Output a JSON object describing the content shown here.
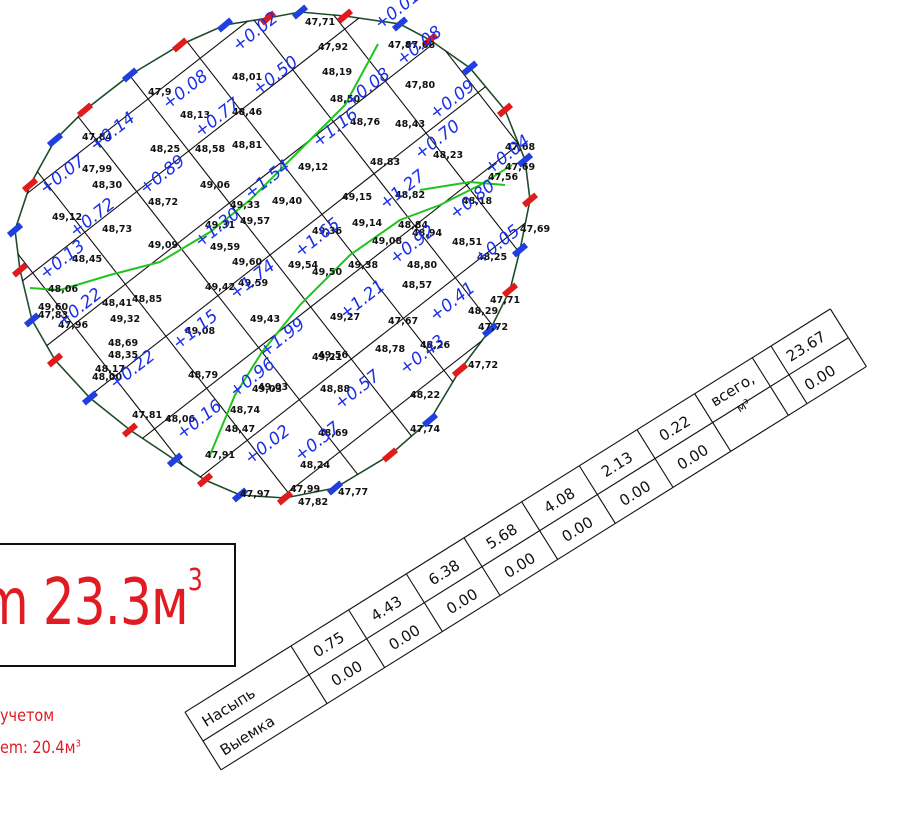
{
  "result": {
    "prefix": "m",
    "volume": "23.3",
    "unit": "м",
    "power": "3"
  },
  "note": {
    "line1": "учетом",
    "line2_prefix": "em: 20.4",
    "line2_unit": "м",
    "line2_power": "3"
  },
  "table": {
    "row_fill_label": "Насыпь",
    "row_cut_label": "Выемка",
    "fill_values": [
      "0.75",
      "4.43",
      "6.38",
      "5.68",
      "4.08",
      "2.13",
      "0.22"
    ],
    "cut_values": [
      "0.00",
      "0.00",
      "0.00",
      "0.00",
      "0.00",
      "0.00",
      "0.00"
    ],
    "total_label_1": "всего,",
    "total_label_2": "м³",
    "total_fill": "23.67",
    "total_cut": "0.00"
  },
  "grid": {
    "work_marks": [
      "+0.02",
      "+0.01",
      "+0.08",
      "+0.08",
      "+0.50",
      "+0.14",
      "+0.77",
      "+0.08",
      "+0.09",
      "+0.07",
      "+0.89",
      "+1.16",
      "+0.70",
      "+0.04",
      "+0.72",
      "+1.54",
      "+1.27",
      "+0.80",
      "+0.13",
      "+1.30",
      "+1.65",
      "+0.92",
      "+0.05",
      "+0.22",
      "+1.74",
      "+1.21",
      "+0.41",
      "+1.15",
      "+1.99",
      "+0.43",
      "+0.22",
      "+0.96",
      "+0.57",
      "+0.16",
      "+0.02",
      "+0.37"
    ],
    "elevations": [
      "47,71",
      "47,92",
      "47,68",
      "47,87",
      "48,19",
      "48,01",
      "47,80",
      "47,9",
      "48,13",
      "48,46",
      "48,50",
      "48,76",
      "48,43",
      "47,84",
      "48,25",
      "48,58",
      "48,81",
      "49,12",
      "48,83",
      "48,23",
      "47,68",
      "47,69",
      "47,99",
      "48,30",
      "49,06",
      "48,72",
      "49,33",
      "49,40",
      "49,15",
      "48,82",
      "48,18",
      "47,56",
      "47,69",
      "49,12",
      "48,73",
      "49,31",
      "49,57",
      "49,36",
      "49,14",
      "48,94",
      "48,84",
      "49,09",
      "48,45",
      "49,59",
      "49,60",
      "49,54",
      "49,50",
      "49,08",
      "49,38",
      "48,51",
      "48,25",
      "48,06",
      "49,60",
      "48,41",
      "48,85",
      "49,42",
      "49,59",
      "48,80",
      "48,57",
      "47,71",
      "47,83",
      "47,96",
      "49,08",
      "48,69",
      "49,32",
      "49,43",
      "49,27",
      "47,67",
      "48,29",
      "47,72",
      "48,35",
      "48,17",
      "48,00",
      "49,56",
      "49,21",
      "48,78",
      "48,26",
      "47,72",
      "48,79",
      "49,03",
      "48,88",
      "48,22",
      "47,81",
      "48,06",
      "48,74",
      "48,69",
      "49,03",
      "47,74",
      "48,47",
      "48,24",
      "47,91",
      "47,97",
      "47,82",
      "47,77",
      "47,99"
    ]
  }
}
